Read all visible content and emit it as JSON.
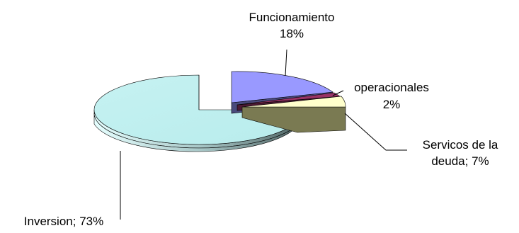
{
  "chart_data": {
    "type": "pie",
    "three_d": true,
    "exploded": true,
    "legend": "none",
    "slices": [
      {
        "name": "Funcionamiento",
        "label": "Funcionamiento; 18%",
        "value": 18,
        "color": "#9999ff"
      },
      {
        "name": "operacionales",
        "label": "operacionales; 2%",
        "value": 2,
        "color": "#993366"
      },
      {
        "name": "Servicos de la deuda",
        "label": "Servicos de la deuda; 7%",
        "value": 7,
        "color": "#ffffcc"
      },
      {
        "name": "Inversion",
        "label": "Inversion; 73%",
        "value": 73,
        "color": "#ccffff"
      }
    ]
  }
}
